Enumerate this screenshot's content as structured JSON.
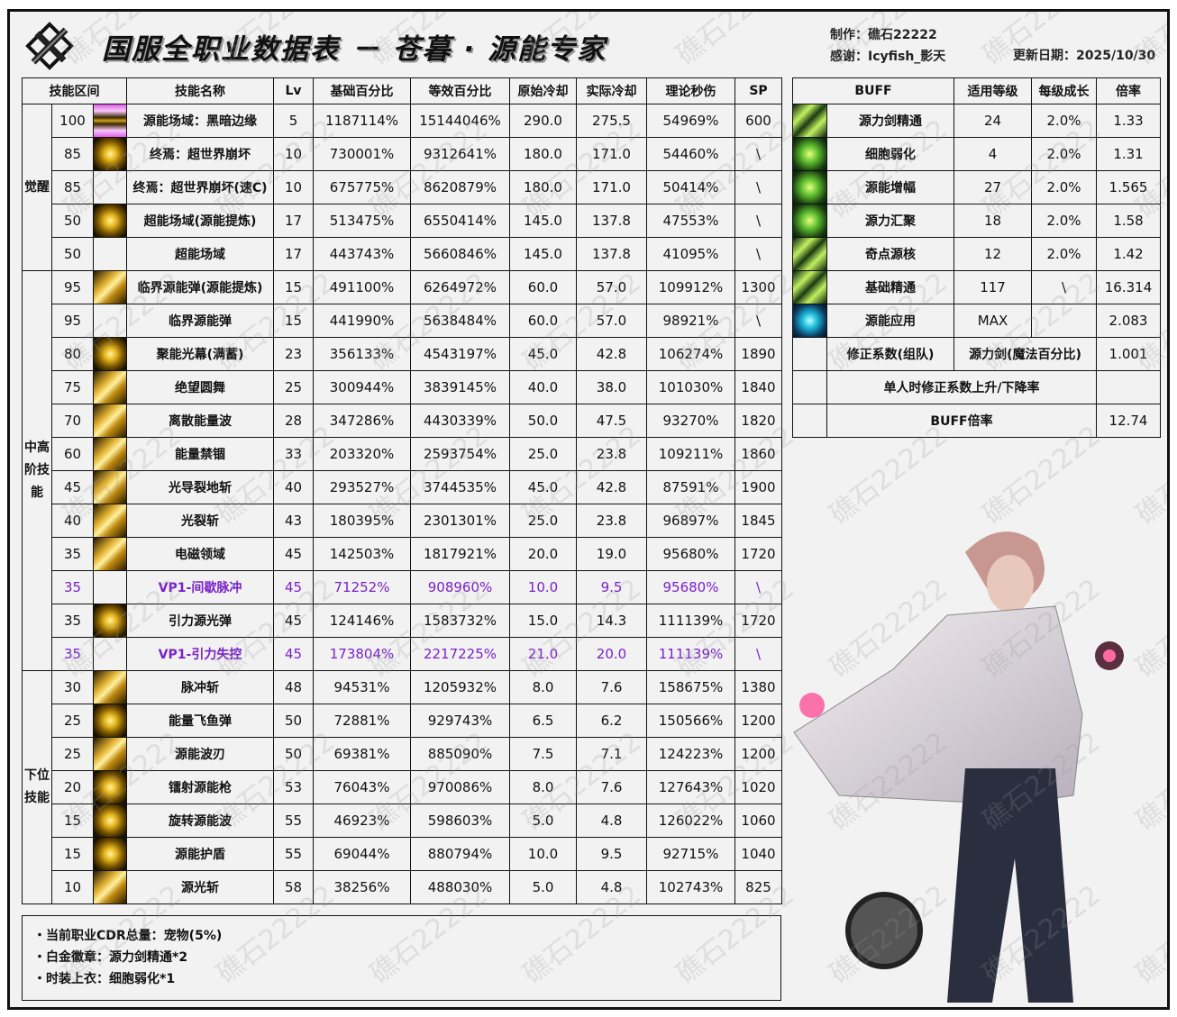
{
  "header": {
    "title": "国服全职业数据表 － 苍暮 · 源能专家",
    "maker_label": "制作：",
    "maker": "礁石22222",
    "thanks_label": "感谢：",
    "thanks": "Icyfish_影天",
    "date_label": "更新日期：",
    "date": "2025/10/30",
    "watermark": "礁石22222"
  },
  "main_table": {
    "headers": [
      "技能区间",
      "技能名称",
      "Lv",
      "基础百分比",
      "等效百分比",
      "原始冷却",
      "实际冷却",
      "理论秒伤",
      "SP"
    ],
    "sections": [
      {
        "label": "觉醒",
        "rows": 5
      },
      {
        "label": "中高阶技能",
        "rows": 12
      },
      {
        "label": "下位技能",
        "rows": 7
      }
    ],
    "purple_color": "#7a22c8",
    "rows": [
      {
        "level": "100",
        "icon": "pink",
        "name": "源能场域：黑暗边缘",
        "lv": "5",
        "base": "1187114%",
        "eq": "15144046%",
        "cd": "290.0",
        "real": "275.5",
        "dps": "54969%",
        "sp": "600"
      },
      {
        "level": "85",
        "icon": "gold",
        "name": "终焉：超世界崩坏",
        "lv": "10",
        "base": "730001%",
        "eq": "9312641%",
        "cd": "180.0",
        "real": "171.0",
        "dps": "54460%",
        "sp": "\\"
      },
      {
        "level": "85",
        "icon": "",
        "name": "终焉：超世界崩坏(速C)",
        "lv": "10",
        "base": "675775%",
        "eq": "8620879%",
        "cd": "180.0",
        "real": "171.0",
        "dps": "50414%",
        "sp": "\\"
      },
      {
        "level": "50",
        "icon": "gold",
        "name": "超能场域(源能提炼)",
        "lv": "17",
        "base": "513475%",
        "eq": "6550414%",
        "cd": "145.0",
        "real": "137.8",
        "dps": "47553%",
        "sp": "\\"
      },
      {
        "level": "50",
        "icon": "",
        "name": "超能场域",
        "lv": "17",
        "base": "443743%",
        "eq": "5660846%",
        "cd": "145.0",
        "real": "137.8",
        "dps": "41095%",
        "sp": "\\"
      },
      {
        "level": "95",
        "icon": "gold2",
        "name": "临界源能弹(源能提炼)",
        "lv": "15",
        "base": "491100%",
        "eq": "6264972%",
        "cd": "60.0",
        "real": "57.0",
        "dps": "109912%",
        "sp": "1300"
      },
      {
        "level": "95",
        "icon": "",
        "name": "临界源能弹",
        "lv": "15",
        "base": "441990%",
        "eq": "5638484%",
        "cd": "60.0",
        "real": "57.0",
        "dps": "98921%",
        "sp": "\\"
      },
      {
        "level": "80",
        "icon": "gold",
        "name": "聚能光幕(满蓄)",
        "lv": "23",
        "base": "356133%",
        "eq": "4543197%",
        "cd": "45.0",
        "real": "42.8",
        "dps": "106274%",
        "sp": "1890"
      },
      {
        "level": "75",
        "icon": "gold2",
        "name": "绝望圆舞",
        "lv": "25",
        "base": "300944%",
        "eq": "3839145%",
        "cd": "40.0",
        "real": "38.0",
        "dps": "101030%",
        "sp": "1840"
      },
      {
        "level": "70",
        "icon": "gold2",
        "name": "离散能量波",
        "lv": "28",
        "base": "347286%",
        "eq": "4430339%",
        "cd": "50.0",
        "real": "47.5",
        "dps": "93270%",
        "sp": "1820"
      },
      {
        "level": "60",
        "icon": "gold2",
        "name": "能量禁锢",
        "lv": "33",
        "base": "203320%",
        "eq": "2593754%",
        "cd": "25.0",
        "real": "23.8",
        "dps": "109211%",
        "sp": "1860"
      },
      {
        "level": "45",
        "icon": "gold2",
        "name": "光导裂地斩",
        "lv": "40",
        "base": "293527%",
        "eq": "3744535%",
        "cd": "45.0",
        "real": "42.8",
        "dps": "87591%",
        "sp": "1900"
      },
      {
        "level": "40",
        "icon": "gold2",
        "name": "光裂斩",
        "lv": "43",
        "base": "180395%",
        "eq": "2301301%",
        "cd": "25.0",
        "real": "23.8",
        "dps": "96897%",
        "sp": "1845"
      },
      {
        "level": "35",
        "icon": "gold2",
        "name": "电磁领域",
        "lv": "45",
        "base": "142503%",
        "eq": "1817921%",
        "cd": "20.0",
        "real": "19.0",
        "dps": "95680%",
        "sp": "1720"
      },
      {
        "level": "35",
        "icon": "",
        "name": "VP1-间歇脉冲",
        "lv": "45",
        "base": "71252%",
        "eq": "908960%",
        "cd": "10.0",
        "real": "9.5",
        "dps": "95680%",
        "sp": "\\",
        "vp": true
      },
      {
        "level": "35",
        "icon": "gold",
        "name": "引力源光弹",
        "lv": "45",
        "base": "124146%",
        "eq": "1583732%",
        "cd": "15.0",
        "real": "14.3",
        "dps": "111139%",
        "sp": "1720"
      },
      {
        "level": "35",
        "icon": "",
        "name": "VP1-引力失控",
        "lv": "45",
        "base": "173804%",
        "eq": "2217225%",
        "cd": "21.0",
        "real": "20.0",
        "dps": "111139%",
        "sp": "\\",
        "vp": true
      },
      {
        "level": "30",
        "icon": "gold2",
        "name": "脉冲斩",
        "lv": "48",
        "base": "94531%",
        "eq": "1205932%",
        "cd": "8.0",
        "real": "7.6",
        "dps": "158675%",
        "sp": "1380"
      },
      {
        "level": "25",
        "icon": "gold",
        "name": "能量飞鱼弹",
        "lv": "50",
        "base": "72881%",
        "eq": "929743%",
        "cd": "6.5",
        "real": "6.2",
        "dps": "150566%",
        "sp": "1200"
      },
      {
        "level": "25",
        "icon": "gold2",
        "name": "源能波刃",
        "lv": "50",
        "base": "69381%",
        "eq": "885090%",
        "cd": "7.5",
        "real": "7.1",
        "dps": "124223%",
        "sp": "1200"
      },
      {
        "level": "20",
        "icon": "gold",
        "name": "镭射源能枪",
        "lv": "53",
        "base": "76043%",
        "eq": "970086%",
        "cd": "8.0",
        "real": "7.6",
        "dps": "127643%",
        "sp": "1020"
      },
      {
        "level": "15",
        "icon": "gold",
        "name": "旋转源能波",
        "lv": "55",
        "base": "46923%",
        "eq": "598603%",
        "cd": "5.0",
        "real": "4.8",
        "dps": "126022%",
        "sp": "1060"
      },
      {
        "level": "15",
        "icon": "gold",
        "name": "源能护盾",
        "lv": "55",
        "base": "69044%",
        "eq": "880794%",
        "cd": "10.0",
        "real": "9.5",
        "dps": "92715%",
        "sp": "1040"
      },
      {
        "level": "10",
        "icon": "gold2",
        "name": "源光斩",
        "lv": "58",
        "base": "38256%",
        "eq": "488030%",
        "cd": "5.0",
        "real": "4.8",
        "dps": "102743%",
        "sp": "825"
      }
    ]
  },
  "buff_table": {
    "headers": [
      "BUFF",
      "适用等级",
      "每级成长",
      "倍率"
    ],
    "rows": [
      {
        "icon": "green2",
        "name": "源力剑精通",
        "level": "24",
        "growth": "2.0%",
        "rate": "1.33"
      },
      {
        "icon": "green",
        "name": "细胞弱化",
        "level": "4",
        "growth": "2.0%",
        "rate": "1.31"
      },
      {
        "icon": "green",
        "name": "源能增幅",
        "level": "27",
        "growth": "2.0%",
        "rate": "1.565"
      },
      {
        "icon": "green",
        "name": "源力汇聚",
        "level": "18",
        "growth": "2.0%",
        "rate": "1.58"
      },
      {
        "icon": "green2",
        "name": "奇点源核",
        "level": "12",
        "growth": "2.0%",
        "rate": "1.42"
      },
      {
        "icon": "green2",
        "name": "基础精通",
        "level": "117",
        "growth": "\\",
        "rate": "16.314"
      },
      {
        "icon": "cyan",
        "name": "源能应用",
        "level": "MAX",
        "growth": "",
        "rate": "2.083"
      }
    ],
    "correction_label": "修正系数(组队)",
    "correction_type": "源力剑(魔法百分比)",
    "correction_value": "1.001",
    "solo_label": "单人时修正系数上升/下降率",
    "solo_value": "",
    "total_label": "BUFF倍率",
    "total_value": "12.74"
  },
  "notes": [
    "当前职业CDR总量：宠物(5%)",
    "白金徽章：源力剑精通*2",
    "时装上衣：细胞弱化*1"
  ]
}
